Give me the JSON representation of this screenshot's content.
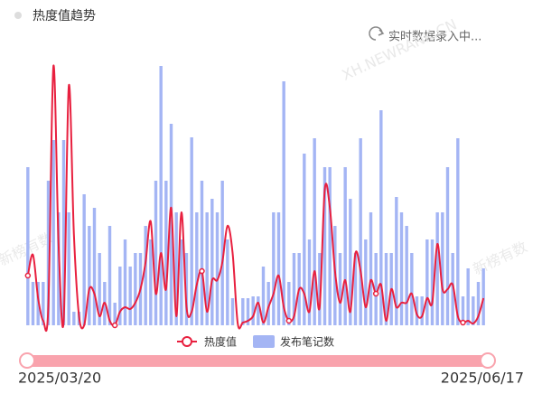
{
  "header": {
    "title": "热度值趋势",
    "status": "实时数据录入中..."
  },
  "watermarks": [
    "XH.NEWRANK.CN",
    "新榜有数",
    "新榜有数"
  ],
  "chart_data": {
    "type": "combo",
    "series": [
      {
        "name": "热度值",
        "type": "line",
        "color": "#e8203f",
        "values": [
          55,
          78,
          30,
          5,
          20,
          287,
          90,
          5,
          265,
          100,
          10,
          0,
          40,
          35,
          10,
          25,
          5,
          0,
          15,
          20,
          18,
          25,
          40,
          70,
          115,
          35,
          80,
          40,
          130,
          10,
          125,
          20,
          15,
          45,
          60,
          15,
          50,
          50,
          70,
          110,
          80,
          2,
          3,
          5,
          10,
          25,
          3,
          20,
          35,
          55,
          20,
          5,
          10,
          40,
          35,
          15,
          60,
          20,
          150,
          130,
          60,
          25,
          50,
          15,
          80,
          60,
          20,
          50,
          35,
          45,
          5,
          40,
          20,
          25,
          25,
          35,
          12,
          10,
          30,
          25,
          90,
          40,
          40,
          45,
          10,
          3,
          5,
          2,
          10,
          30
        ]
      },
      {
        "name": "发布笔记数",
        "type": "bar",
        "color": "#a4b5f4",
        "values": [
          175,
          48,
          48,
          48,
          160,
          205,
          125,
          205,
          125,
          15,
          15,
          145,
          110,
          130,
          80,
          48,
          110,
          25,
          65,
          95,
          65,
          80,
          80,
          110,
          95,
          160,
          287,
          160,
          223,
          125,
          95,
          80,
          208,
          125,
          160,
          125,
          140,
          125,
          160,
          95,
          30,
          0,
          30,
          30,
          32,
          32,
          65,
          48,
          125,
          125,
          270,
          48,
          80,
          80,
          190,
          95,
          207,
          80,
          175,
          175,
          110,
          80,
          175,
          140,
          80,
          207,
          95,
          125,
          80,
          238,
          80,
          80,
          142,
          125,
          110,
          80,
          32,
          32,
          95,
          95,
          125,
          125,
          175,
          80,
          207,
          32,
          63,
          32,
          48,
          63
        ]
      }
    ],
    "ylim": [
      0,
      300
    ],
    "range_slider": {
      "start": "2025/03/20",
      "end": "2025/06/17"
    }
  }
}
